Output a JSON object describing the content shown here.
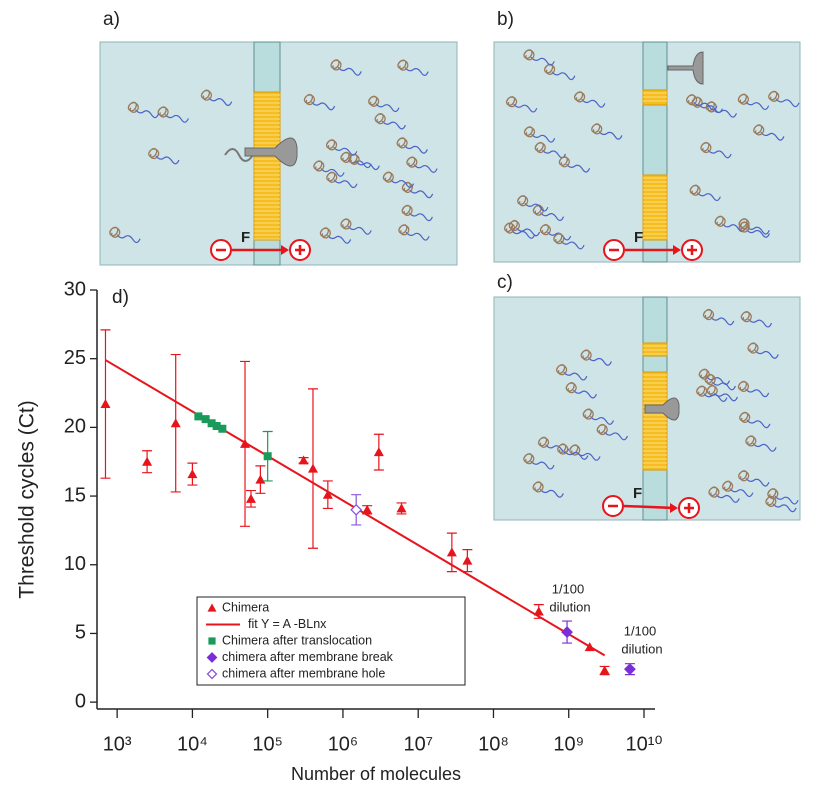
{
  "panels": [
    {
      "label": "a)",
      "force": "F"
    },
    {
      "label": "b)",
      "force": "F"
    },
    {
      "label": "c)",
      "force": "F"
    }
  ],
  "chart_data": {
    "type": "scatter",
    "panel_label": "d)",
    "x_label": "Number of molecules",
    "y_label": "Threshold cycles (Ct)",
    "x_scale": "log",
    "xlim": [
      540,
      14000000000
    ],
    "ylim": [
      -0.5,
      30
    ],
    "xticks": [
      {
        "value": 1000,
        "label": "10³"
      },
      {
        "value": 10000,
        "label": "10⁴"
      },
      {
        "value": 100000,
        "label": "10⁵"
      },
      {
        "value": 1000000,
        "label": "10⁶"
      },
      {
        "value": 10000000,
        "label": "10⁷"
      },
      {
        "value": 100000000,
        "label": "10⁸"
      },
      {
        "value": 1000000000,
        "label": "10⁹"
      },
      {
        "value": 10000000000,
        "label": "10¹⁰"
      }
    ],
    "yticks": [
      0,
      5,
      10,
      15,
      20,
      25,
      30
    ],
    "series": [
      {
        "name": "Chimera",
        "color": "#e8141c",
        "marker": "triangle",
        "x": [
          700,
          2500,
          6000,
          10000,
          50000,
          60000,
          80000,
          300000,
          400000,
          630000,
          2100000,
          3000000,
          6000000,
          28000000,
          45000000,
          400000000,
          1900000000,
          3000000000
        ],
        "values": [
          21.7,
          17.5,
          20.3,
          16.6,
          18.8,
          14.8,
          16.2,
          17.6,
          17.0,
          15.1,
          14.0,
          18.2,
          14.1,
          10.9,
          10.3,
          6.6,
          4.0,
          2.3
        ],
        "errors": [
          5.4,
          0.8,
          5.0,
          0.8,
          6.0,
          0.6,
          1.0,
          0.2,
          5.8,
          1.0,
          0.3,
          1.3,
          0.4,
          1.4,
          0.8,
          0.5,
          null,
          0.3
        ]
      },
      {
        "name": "fit Y = A -BLnx",
        "color": "#e8141c",
        "marker": "line",
        "x": [
          700,
          3000000000
        ],
        "values": [
          24.9,
          3.4
        ]
      },
      {
        "name": "Chimera after translocation",
        "color": "#1a9a5a",
        "marker": "square",
        "x": [
          12000,
          15000,
          18000,
          21000,
          25000,
          100000
        ],
        "values": [
          20.8,
          20.6,
          20.3,
          20.1,
          19.9,
          17.9
        ],
        "errors": [
          null,
          null,
          null,
          null,
          null,
          1.8
        ]
      },
      {
        "name": "chimera after membrane break",
        "color": "#7a2fd6",
        "marker": "diamond",
        "x": [
          950000000,
          6500000000
        ],
        "values": [
          5.1,
          2.4
        ],
        "errors": [
          0.8,
          0.4
        ]
      },
      {
        "name": "chimera after membrane hole",
        "color": "#8a55d8",
        "marker": "diamond-open",
        "x": [
          1500000
        ],
        "values": [
          14.0
        ],
        "errors": [
          1.1
        ]
      }
    ],
    "annotations": [
      [
        "1/100",
        "dilution"
      ],
      [
        "1/100",
        "dilution"
      ]
    ]
  }
}
